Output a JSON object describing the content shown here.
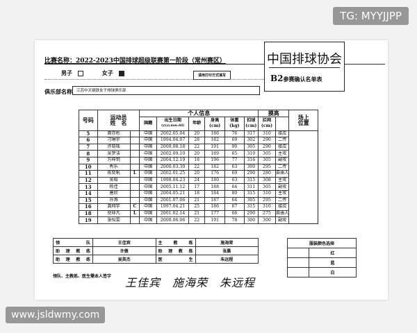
{
  "form": {
    "title": "比赛名称：2022-2023中国排球超级联赛第一阶段（常州赛区）",
    "org": "中国排球协会",
    "form_code": "B2",
    "form_name": "参赛确认名单表",
    "male_label": "男子",
    "female_label": "女子",
    "selected_gender": "女子",
    "print_note": "请用打印方式填写",
    "club_label": "俱乐部名称",
    "club_name": "江苏中天钢铁女子排球俱乐部"
  },
  "roster": {
    "headers": {
      "number": "号码",
      "athlete": "运动员",
      "name": "姓　名",
      "personal": "个人信息",
      "nationality": "国籍",
      "birth": "出生日期",
      "birth_fmt": "(yyyy.mm.dd)",
      "age": "年龄",
      "height": "身高",
      "weight": "体重",
      "cm": "(cm)",
      "kg": "(kg)",
      "reach": "摸高",
      "spike": "扣球",
      "block": "拦网",
      "position": "场上",
      "position2": "位置"
    },
    "rows": [
      {
        "no": "5",
        "name": "周亦彤",
        "role": "",
        "nat": "中国",
        "birth": "2002.05.04",
        "age": "20",
        "height": "186",
        "weight": "76",
        "spike": "317",
        "block": "310",
        "pos": "接应"
      },
      {
        "no": "6",
        "name": "刁琳宇",
        "role": "",
        "nat": "中国",
        "birth": "1994.04.07",
        "age": "28",
        "height": "182",
        "weight": "69",
        "spike": "302",
        "block": "290",
        "pos": "二传"
      },
      {
        "no": "7",
        "name": "许晓瑶",
        "role": "",
        "nat": "中国",
        "birth": "2000.08.18",
        "age": "22",
        "height": "191",
        "weight": "90",
        "spike": "305",
        "block": "290",
        "pos": "接应"
      },
      {
        "no": "8",
        "name": "吴梦洁",
        "role": "",
        "nat": "中国",
        "birth": "2002.09.10",
        "age": "20",
        "height": "189",
        "weight": "65",
        "spike": "310",
        "block": "305",
        "pos": "主攻"
      },
      {
        "no": "9",
        "name": "万梓玥",
        "role": "",
        "nat": "中国",
        "birth": "2004.12.19",
        "age": "18",
        "height": "196",
        "weight": "77",
        "spike": "316",
        "block": "305",
        "pos": "副攻"
      },
      {
        "no": "10",
        "name": "秀乐",
        "role": "",
        "nat": "中国",
        "birth": "2000.03.30",
        "age": "22",
        "height": "182",
        "weight": "63",
        "spike": "300",
        "block": "295",
        "pos": "二传"
      },
      {
        "no": "11",
        "name": "陈奕帆",
        "role": "L",
        "nat": "中国",
        "birth": "2002.01.25",
        "age": "20",
        "height": "176",
        "weight": "69",
        "spike": "290",
        "block": "280",
        "pos": "自由人"
      },
      {
        "no": "12",
        "name": "吴晗",
        "role": "",
        "nat": "中国",
        "birth": "1998.04.23",
        "age": "24",
        "height": "180",
        "weight": "63",
        "spike": "315",
        "block": "308",
        "pos": "主攻"
      },
      {
        "no": "13",
        "name": "杨佳",
        "role": "",
        "nat": "中国",
        "birth": "2005.11.12",
        "age": "17",
        "height": "188",
        "weight": "64",
        "spike": "311",
        "block": "305",
        "pos": "副攻"
      },
      {
        "no": "14",
        "name": "唐欣",
        "role": "",
        "nat": "中国",
        "birth": "2004.05.21",
        "age": "18",
        "height": "184",
        "weight": "80",
        "spike": "315",
        "block": "310",
        "pos": "主攻"
      },
      {
        "no": "15",
        "name": "孙燕",
        "role": "",
        "nat": "中国",
        "birth": "2001.07.06",
        "age": "21",
        "height": "187",
        "weight": "64",
        "spike": "305",
        "block": "295",
        "pos": "二传"
      },
      {
        "no": "16",
        "name": "龚翔宇",
        "role": "C",
        "nat": "中国",
        "birth": "1997.04.21",
        "age": "25",
        "height": "186",
        "weight": "67",
        "spike": "315",
        "block": "310",
        "pos": "接应"
      },
      {
        "no": "18",
        "name": "倪非凡",
        "role": "L",
        "nat": "中国",
        "birth": "2001.02.14",
        "age": "21",
        "height": "177",
        "weight": "66",
        "spike": "290",
        "block": "275",
        "pos": "自由人"
      },
      {
        "no": "19",
        "name": "张怡雯",
        "role": "",
        "nat": "中国",
        "birth": "2000.06.06",
        "age": "22",
        "height": "191",
        "weight": "78",
        "spike": "300",
        "block": "300",
        "pos": "副攻"
      }
    ]
  },
  "staff": {
    "rows": [
      {
        "l1": "领队",
        "v1": "王佳宾",
        "l2": "主教练",
        "v2": "施海荣"
      },
      {
        "l1": "助理教练",
        "v1": "许傲",
        "l2": "助理教练",
        "v2": "张晨"
      },
      {
        "l1": "助理教练",
        "v1": "吴英杰",
        "l2": "医生",
        "v2": "朱远程"
      }
    ],
    "sign_label": "领队、主教练、医生需本人签字",
    "signatures": "王佳宾　施海荣　朱远程"
  },
  "uniform": {
    "title": "服装颜色选择",
    "options": [
      "红",
      "蓝",
      "白"
    ]
  },
  "watermarks": {
    "top": "TG: MYYJJPP",
    "bottom": "www.jsldwmy.com"
  }
}
